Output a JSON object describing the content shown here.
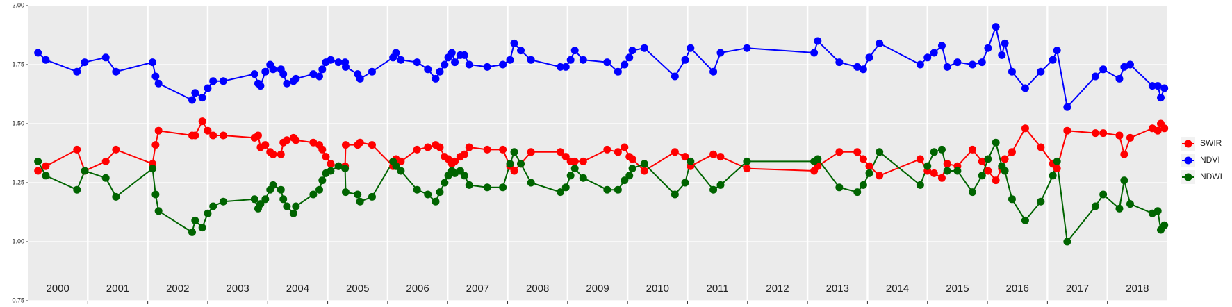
{
  "chart_data": {
    "type": "line",
    "xlim": [
      2000,
      2019
    ],
    "ylim": [
      0.75,
      2.0
    ],
    "yticks": [
      {
        "value": 0.75,
        "label": "0.75"
      },
      {
        "value": 1.0,
        "label": "1.00"
      },
      {
        "value": 1.25,
        "label": "1.25"
      },
      {
        "value": 1.5,
        "label": "1.50"
      },
      {
        "value": 1.75,
        "label": "1.75"
      },
      {
        "value": 2.0,
        "label": "2.00"
      }
    ],
    "year_breaks": [
      2001,
      2002,
      2003,
      2004,
      2005,
      2006,
      2007,
      2008,
      2009,
      2010,
      2011,
      2012,
      2013,
      2014,
      2015,
      2016,
      2017,
      2018
    ],
    "year_labels": [
      {
        "value": 2000.5,
        "label": "2000"
      },
      {
        "value": 2001.5,
        "label": "2001"
      },
      {
        "value": 2002.5,
        "label": "2002"
      },
      {
        "value": 2003.5,
        "label": "2003"
      },
      {
        "value": 2004.5,
        "label": "2004"
      },
      {
        "value": 2005.5,
        "label": "2005"
      },
      {
        "value": 2006.5,
        "label": "2006"
      },
      {
        "value": 2007.5,
        "label": "2007"
      },
      {
        "value": 2008.5,
        "label": "2008"
      },
      {
        "value": 2009.5,
        "label": "2009"
      },
      {
        "value": 2010.5,
        "label": "2010"
      },
      {
        "value": 2011.5,
        "label": "2011"
      },
      {
        "value": 2012.5,
        "label": "2012"
      },
      {
        "value": 2013.5,
        "label": "2013"
      },
      {
        "value": 2014.5,
        "label": "2014"
      },
      {
        "value": 2015.5,
        "label": "2015"
      },
      {
        "value": 2016.5,
        "label": "2016"
      },
      {
        "value": 2017.5,
        "label": "2017"
      },
      {
        "value": 2018.5,
        "label": "2018"
      }
    ],
    "grid": true,
    "legend": "right",
    "x": [
      2000.17,
      2000.3,
      2000.82,
      2000.95,
      2001.3,
      2001.47,
      2002.08,
      2002.13,
      2002.18,
      2002.74,
      2002.79,
      2002.91,
      2003.0,
      2003.09,
      2003.26,
      2003.78,
      2003.84,
      2003.88,
      2003.96,
      2004.04,
      2004.09,
      2004.22,
      2004.26,
      2004.32,
      2004.43,
      2004.47,
      2004.76,
      2004.86,
      2004.91,
      2004.97,
      2005.05,
      2005.18,
      2005.29,
      2005.3,
      2005.5,
      2005.54,
      2005.74,
      2006.09,
      2006.14,
      2006.22,
      2006.49,
      2006.67,
      2006.8,
      2006.87,
      2006.95,
      2007.01,
      2007.07,
      2007.12,
      2007.21,
      2007.28,
      2007.36,
      2007.66,
      2007.92,
      2008.04,
      2008.11,
      2008.22,
      2008.39,
      2008.88,
      2008.97,
      2009.05,
      2009.12,
      2009.26,
      2009.66,
      2009.84,
      2009.95,
      2010.03,
      2010.08,
      2010.28,
      2010.79,
      2010.96,
      2011.05,
      2011.43,
      2011.55,
      2011.99,
      2013.11,
      2013.17,
      2013.53,
      2013.83,
      2013.93,
      2014.03,
      2014.2,
      2014.88,
      2015.0,
      2015.11,
      2015.24,
      2015.33,
      2015.5,
      2015.75,
      2015.91,
      2016.01,
      2016.14,
      2016.24,
      2016.29,
      2016.41,
      2016.63,
      2016.89,
      2017.09,
      2017.16,
      2017.33,
      2017.8,
      2017.93,
      2018.2,
      2018.28,
      2018.38,
      2018.75,
      2018.84,
      2018.89,
      2018.95
    ],
    "series": [
      {
        "name": "SWIR",
        "color": "#ff0000",
        "values": [
          1.3,
          1.32,
          1.39,
          1.3,
          1.34,
          1.39,
          1.33,
          1.41,
          1.47,
          1.45,
          1.45,
          1.51,
          1.47,
          1.45,
          1.45,
          1.44,
          1.45,
          1.4,
          1.41,
          1.38,
          1.37,
          1.37,
          1.42,
          1.43,
          1.44,
          1.43,
          1.42,
          1.41,
          1.39,
          1.36,
          1.33,
          1.32,
          1.32,
          1.41,
          1.41,
          1.42,
          1.41,
          1.32,
          1.35,
          1.34,
          1.39,
          1.4,
          1.41,
          1.4,
          1.36,
          1.35,
          1.33,
          1.34,
          1.36,
          1.37,
          1.4,
          1.39,
          1.39,
          1.32,
          1.3,
          1.33,
          1.38,
          1.38,
          1.36,
          1.34,
          1.34,
          1.34,
          1.39,
          1.38,
          1.4,
          1.36,
          1.35,
          1.3,
          1.38,
          1.36,
          1.32,
          1.37,
          1.36,
          1.31,
          1.3,
          1.32,
          1.38,
          1.38,
          1.35,
          1.32,
          1.28,
          1.35,
          1.3,
          1.29,
          1.27,
          1.33,
          1.32,
          1.39,
          1.34,
          1.3,
          1.26,
          1.31,
          1.35,
          1.38,
          1.48,
          1.4,
          1.33,
          1.31,
          1.47,
          1.46,
          1.46,
          1.45,
          1.37,
          1.44,
          1.48,
          1.47,
          1.5,
          1.48
        ]
      },
      {
        "name": "NDVI",
        "color": "#0000ff",
        "values": [
          1.8,
          1.77,
          1.72,
          1.76,
          1.78,
          1.72,
          1.76,
          1.7,
          1.67,
          1.6,
          1.63,
          1.61,
          1.65,
          1.68,
          1.68,
          1.71,
          1.67,
          1.66,
          1.72,
          1.75,
          1.73,
          1.73,
          1.71,
          1.67,
          1.68,
          1.69,
          1.71,
          1.7,
          1.73,
          1.76,
          1.77,
          1.76,
          1.76,
          1.74,
          1.71,
          1.69,
          1.72,
          1.78,
          1.8,
          1.77,
          1.76,
          1.73,
          1.69,
          1.72,
          1.75,
          1.78,
          1.8,
          1.76,
          1.79,
          1.79,
          1.75,
          1.74,
          1.75,
          1.77,
          1.84,
          1.81,
          1.77,
          1.74,
          1.74,
          1.77,
          1.81,
          1.77,
          1.76,
          1.72,
          1.75,
          1.78,
          1.81,
          1.82,
          1.7,
          1.77,
          1.82,
          1.72,
          1.8,
          1.82,
          1.8,
          1.85,
          1.76,
          1.74,
          1.73,
          1.78,
          1.84,
          1.75,
          1.78,
          1.8,
          1.83,
          1.74,
          1.76,
          1.75,
          1.76,
          1.82,
          1.91,
          1.79,
          1.84,
          1.72,
          1.65,
          1.72,
          1.77,
          1.81,
          1.57,
          1.7,
          1.73,
          1.69,
          1.74,
          1.75,
          1.66,
          1.66,
          1.61,
          1.65
        ]
      },
      {
        "name": "NDWI",
        "color": "#006400",
        "values": [
          1.34,
          1.28,
          1.22,
          1.3,
          1.27,
          1.19,
          1.31,
          1.2,
          1.13,
          1.04,
          1.09,
          1.06,
          1.12,
          1.15,
          1.17,
          1.18,
          1.14,
          1.16,
          1.18,
          1.22,
          1.24,
          1.22,
          1.18,
          1.15,
          1.12,
          1.15,
          1.2,
          1.22,
          1.26,
          1.29,
          1.3,
          1.32,
          1.31,
          1.21,
          1.2,
          1.17,
          1.19,
          1.34,
          1.32,
          1.3,
          1.22,
          1.2,
          1.17,
          1.21,
          1.25,
          1.28,
          1.3,
          1.29,
          1.3,
          1.28,
          1.24,
          1.23,
          1.23,
          1.33,
          1.38,
          1.33,
          1.25,
          1.21,
          1.23,
          1.28,
          1.31,
          1.27,
          1.22,
          1.22,
          1.26,
          1.28,
          1.31,
          1.33,
          1.2,
          1.25,
          1.34,
          1.22,
          1.24,
          1.34,
          1.34,
          1.35,
          1.23,
          1.21,
          1.24,
          1.29,
          1.38,
          1.24,
          1.32,
          1.38,
          1.39,
          1.3,
          1.3,
          1.21,
          1.28,
          1.35,
          1.42,
          1.32,
          1.3,
          1.18,
          1.09,
          1.17,
          1.28,
          1.34,
          1.0,
          1.15,
          1.2,
          1.14,
          1.26,
          1.16,
          1.12,
          1.13,
          1.05,
          1.07
        ]
      }
    ]
  }
}
